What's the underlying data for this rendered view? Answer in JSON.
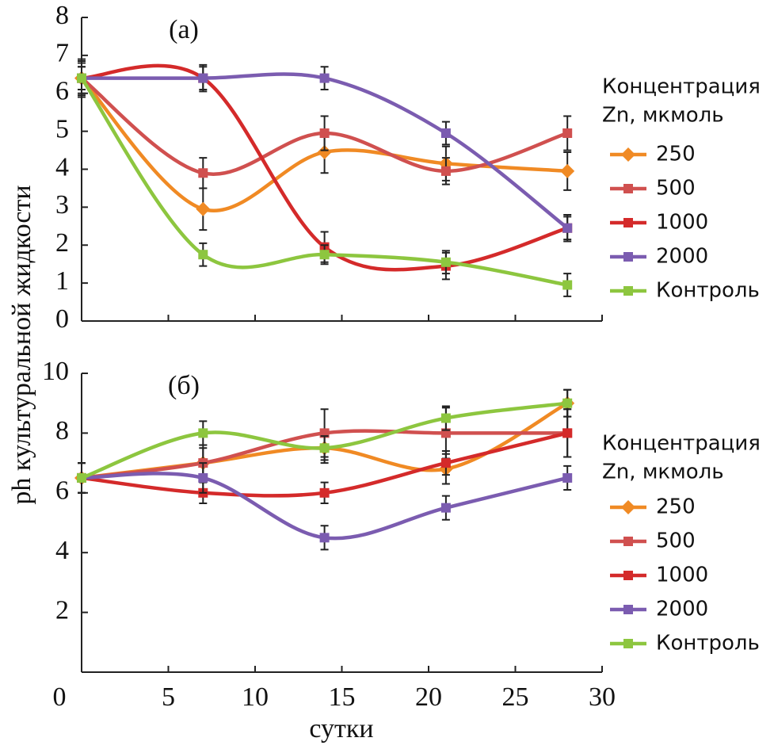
{
  "ylabel": "ph культуральной жидкости",
  "xlabel": "сутки",
  "chart_data": [
    {
      "type": "line",
      "title": "(а)",
      "x": [
        0,
        7,
        14,
        21,
        28
      ],
      "ylim": [
        0,
        8
      ],
      "yticks": [
        0,
        1,
        2,
        3,
        4,
        5,
        6,
        7,
        8
      ],
      "xlim": [
        0,
        30
      ],
      "legend_title": [
        "Концентрация",
        "Zn, мкмоль"
      ],
      "series": [
        {
          "name": "250",
          "color": "#f08a24",
          "marker": "diamond",
          "values": [
            6.4,
            2.95,
            4.45,
            4.15,
            3.95
          ],
          "errors": [
            0.5,
            0.55,
            0.55,
            0.45,
            0.5
          ]
        },
        {
          "name": "500",
          "color": "#d0504f",
          "marker": "square",
          "values": [
            6.4,
            3.9,
            4.95,
            3.95,
            4.95
          ],
          "errors": [
            0.45,
            0.4,
            0.45,
            0.35,
            0.45
          ]
        },
        {
          "name": "1000",
          "color": "#d42a2a",
          "marker": "square",
          "values": [
            6.4,
            6.4,
            1.95,
            1.45,
            2.45
          ],
          "errors": [
            0.4,
            0.35,
            0.4,
            0.35,
            0.35
          ]
        },
        {
          "name": "2000",
          "color": "#7b5cb0",
          "marker": "square",
          "values": [
            6.4,
            6.4,
            6.4,
            4.95,
            2.45
          ],
          "errors": [
            0.3,
            0.3,
            0.3,
            0.3,
            0.3
          ]
        },
        {
          "name": "Контроль",
          "color": "#8dc63f",
          "marker": "square",
          "values": [
            6.4,
            1.75,
            1.75,
            1.55,
            0.95
          ],
          "errors": [
            0.3,
            0.3,
            0.25,
            0.3,
            0.3
          ]
        }
      ]
    },
    {
      "type": "line",
      "title": "(б)",
      "x": [
        0,
        7,
        14,
        21,
        28
      ],
      "ylim": [
        0,
        10
      ],
      "yticks": [
        2,
        4,
        6,
        8,
        10
      ],
      "xlim": [
        0,
        30
      ],
      "xticks": [
        0,
        5,
        10,
        15,
        20,
        25,
        30
      ],
      "legend_title": [
        "Концентрация",
        "Zn, мкмоль"
      ],
      "series": [
        {
          "name": "250",
          "color": "#f08a24",
          "marker": "diamond",
          "values": [
            6.5,
            7,
            7.5,
            6.8,
            9
          ],
          "errors": [
            0.5,
            0.5,
            0.5,
            0.5,
            0.45
          ]
        },
        {
          "name": "500",
          "color": "#d0504f",
          "marker": "square",
          "values": [
            6.5,
            7,
            8,
            8,
            8
          ],
          "errors": [
            0.5,
            0.6,
            0.8,
            0.85,
            0.8
          ]
        },
        {
          "name": "1000",
          "color": "#d42a2a",
          "marker": "square",
          "values": [
            6.5,
            6,
            6,
            7,
            8
          ],
          "errors": [
            0.5,
            0.35,
            0.35,
            0.4,
            0.8
          ]
        },
        {
          "name": "2000",
          "color": "#7b5cb0",
          "marker": "square",
          "values": [
            6.5,
            6.5,
            4.5,
            5.5,
            6.5
          ],
          "errors": [
            0.5,
            0.5,
            0.4,
            0.4,
            0.4
          ]
        },
        {
          "name": "Контроль",
          "color": "#8dc63f",
          "marker": "square",
          "values": [
            6.5,
            8,
            7.5,
            8.5,
            9
          ],
          "errors": [
            0.5,
            0.4,
            0.4,
            0.4,
            0.45
          ]
        }
      ]
    }
  ]
}
